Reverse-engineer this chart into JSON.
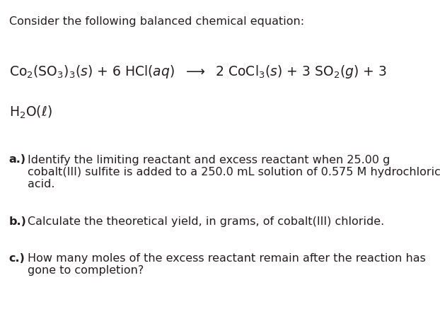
{
  "bg_color": "#ffffff",
  "text_color": "#231f20",
  "header": "Consider the following balanced chemical equation:",
  "equation_line1": "Co₂(SO₃)₃(Σs) + 6 HCl(Σaq)  ⟶  2 CoCl₃(Σs) + 3 SO₂(Σg) + 3",
  "equation_line2": "H₂O(Σℓ)",
  "q_a_bold": "a.)",
  "q_a_text": "  Identify the limiting reactant and excess reactant when 25.00 g\ncobalt(III) sulfite is added to a 250.0 mL solution of 0.575 M hydrochloric\nacid.",
  "q_b_bold": "b.)",
  "q_b_text": "  Calculate the theoretical yield, in grams, of cobalt(III) chloride.",
  "q_c_bold": "c.)",
  "q_c_text": "  How many moles of the excess reactant remain after the reaction has\ngone to completion?",
  "figsize": [
    6.22,
    4.37
  ],
  "dpi": 100
}
